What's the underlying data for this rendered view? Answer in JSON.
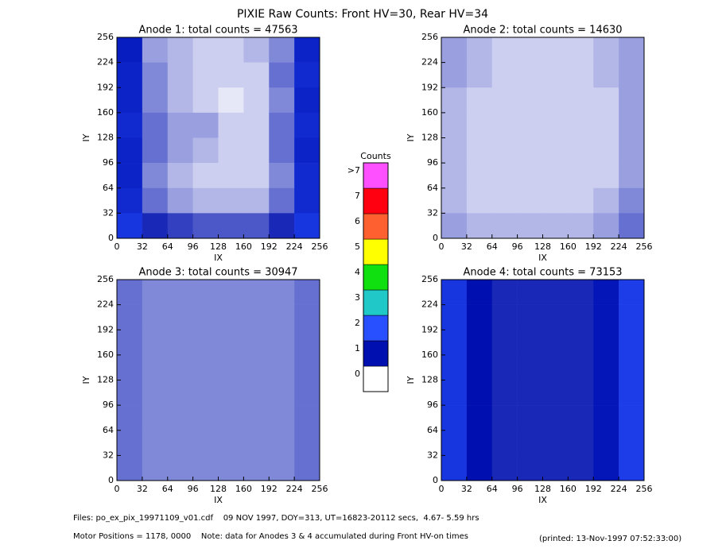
{
  "title": "PIXIE Raw Counts:  Front HV=30, Rear HV=34",
  "chart_data": [
    {
      "type": "heatmap",
      "title": "Anode 1: total counts = 47563",
      "x_label": "IX",
      "y_label": "IY",
      "xlim": [
        0,
        256
      ],
      "ylim": [
        0,
        256
      ],
      "xticks": [
        0,
        32,
        64,
        96,
        128,
        160,
        192,
        224,
        256
      ],
      "yticks": [
        0,
        32,
        64,
        96,
        128,
        160,
        192,
        224,
        256
      ],
      "values": [
        [
          1.2,
          0.4,
          0.3,
          0.2,
          0.2,
          0.3,
          0.5,
          1.3
        ],
        [
          1.3,
          0.5,
          0.3,
          0.2,
          0.2,
          0.2,
          0.6,
          1.4
        ],
        [
          1.3,
          0.5,
          0.3,
          0.2,
          0.1,
          0.2,
          0.5,
          1.3
        ],
        [
          1.4,
          0.6,
          0.4,
          0.4,
          0.2,
          0.2,
          0.6,
          1.4
        ],
        [
          1.3,
          0.6,
          0.4,
          0.3,
          0.2,
          0.2,
          0.6,
          1.3
        ],
        [
          1.3,
          0.5,
          0.3,
          0.2,
          0.2,
          0.2,
          0.5,
          1.4
        ],
        [
          1.4,
          0.6,
          0.4,
          0.3,
          0.3,
          0.3,
          0.6,
          1.4
        ],
        [
          1.6,
          0.9,
          0.8,
          0.7,
          0.7,
          0.7,
          0.9,
          1.6
        ]
      ]
    },
    {
      "type": "heatmap",
      "title": "Anode 2: total counts = 14630",
      "x_label": "IX",
      "y_label": "IY",
      "xlim": [
        0,
        256
      ],
      "ylim": [
        0,
        256
      ],
      "xticks": [
        0,
        32,
        64,
        96,
        128,
        160,
        192,
        224,
        256
      ],
      "yticks": [
        0,
        32,
        64,
        96,
        128,
        160,
        192,
        224,
        256
      ],
      "values": [
        [
          0.4,
          0.3,
          0.2,
          0.2,
          0.2,
          0.2,
          0.3,
          0.4
        ],
        [
          0.4,
          0.3,
          0.2,
          0.2,
          0.2,
          0.2,
          0.3,
          0.4
        ],
        [
          0.3,
          0.2,
          0.2,
          0.2,
          0.2,
          0.2,
          0.2,
          0.4
        ],
        [
          0.3,
          0.2,
          0.2,
          0.2,
          0.2,
          0.2,
          0.2,
          0.4
        ],
        [
          0.3,
          0.2,
          0.2,
          0.2,
          0.2,
          0.2,
          0.2,
          0.4
        ],
        [
          0.3,
          0.2,
          0.2,
          0.2,
          0.2,
          0.2,
          0.2,
          0.4
        ],
        [
          0.3,
          0.2,
          0.2,
          0.2,
          0.2,
          0.2,
          0.3,
          0.5
        ],
        [
          0.4,
          0.3,
          0.3,
          0.3,
          0.3,
          0.3,
          0.4,
          0.6
        ]
      ]
    },
    {
      "type": "heatmap",
      "title": "Anode 3: total counts = 30947",
      "x_label": "IX",
      "y_label": "IY",
      "xlim": [
        0,
        256
      ],
      "ylim": [
        0,
        256
      ],
      "xticks": [
        0,
        32,
        64,
        96,
        128,
        160,
        192,
        224,
        256
      ],
      "yticks": [
        0,
        32,
        64,
        96,
        128,
        160,
        192,
        224,
        256
      ],
      "values": [
        [
          0.6,
          0.5,
          0.5,
          0.5,
          0.5,
          0.5,
          0.5,
          0.6
        ],
        [
          0.6,
          0.5,
          0.5,
          0.5,
          0.5,
          0.5,
          0.5,
          0.6
        ],
        [
          0.6,
          0.5,
          0.5,
          0.5,
          0.5,
          0.5,
          0.5,
          0.6
        ],
        [
          0.6,
          0.5,
          0.5,
          0.5,
          0.5,
          0.5,
          0.5,
          0.6
        ],
        [
          0.6,
          0.5,
          0.5,
          0.5,
          0.5,
          0.5,
          0.5,
          0.6
        ],
        [
          0.6,
          0.5,
          0.5,
          0.5,
          0.5,
          0.5,
          0.5,
          0.6
        ],
        [
          0.6,
          0.5,
          0.5,
          0.5,
          0.5,
          0.5,
          0.5,
          0.6
        ],
        [
          0.6,
          0.5,
          0.5,
          0.5,
          0.5,
          0.5,
          0.5,
          0.6
        ]
      ]
    },
    {
      "type": "heatmap",
      "title": "Anode 4: total counts = 73153",
      "x_label": "IX",
      "y_label": "IY",
      "xlim": [
        0,
        256
      ],
      "ylim": [
        0,
        256
      ],
      "xticks": [
        0,
        32,
        64,
        96,
        128,
        160,
        192,
        224,
        256
      ],
      "yticks": [
        0,
        32,
        64,
        96,
        128,
        160,
        192,
        224,
        256
      ],
      "values": [
        [
          1.6,
          1.0,
          0.9,
          0.9,
          0.9,
          0.9,
          1.1,
          1.7
        ],
        [
          1.6,
          1.0,
          0.9,
          0.9,
          0.9,
          0.9,
          1.1,
          1.7
        ],
        [
          1.6,
          1.0,
          0.9,
          0.9,
          0.9,
          0.9,
          1.1,
          1.7
        ],
        [
          1.6,
          1.0,
          0.9,
          0.9,
          0.9,
          0.9,
          1.1,
          1.7
        ],
        [
          1.6,
          1.0,
          0.9,
          0.9,
          0.9,
          0.9,
          1.1,
          1.7
        ],
        [
          1.6,
          1.0,
          0.9,
          0.9,
          0.9,
          0.9,
          1.1,
          1.7
        ],
        [
          1.6,
          1.0,
          0.9,
          0.9,
          0.9,
          0.9,
          1.1,
          1.7
        ],
        [
          1.6,
          1.0,
          0.9,
          0.9,
          0.9,
          0.9,
          1.1,
          1.7
        ]
      ]
    }
  ],
  "colorbar": {
    "title": "Counts",
    "ticks": [
      0,
      1,
      2,
      3,
      4,
      5,
      6,
      7,
      {
        "value": 8,
        "label": ">7"
      }
    ],
    "colors": [
      "#ffffff",
      "#0010b0",
      "#2850ff",
      "#20c8c8",
      "#10e010",
      "#ffff00",
      "#ff6030",
      "#ff0010",
      "#ff50ff"
    ]
  },
  "footer": {
    "files": "Files: po_ex_pix_19971109_v01.cdf    09 NOV 1997, DOY=313, UT=16823-20112 secs,  4.67- 5.59 hrs",
    "motor": "Motor Positions = 1178, 0000    Note: data for Anodes 3 & 4 accumulated during Front HV-on times",
    "printed": "(printed: 13-Nov-1997 07:52:33:00)"
  }
}
